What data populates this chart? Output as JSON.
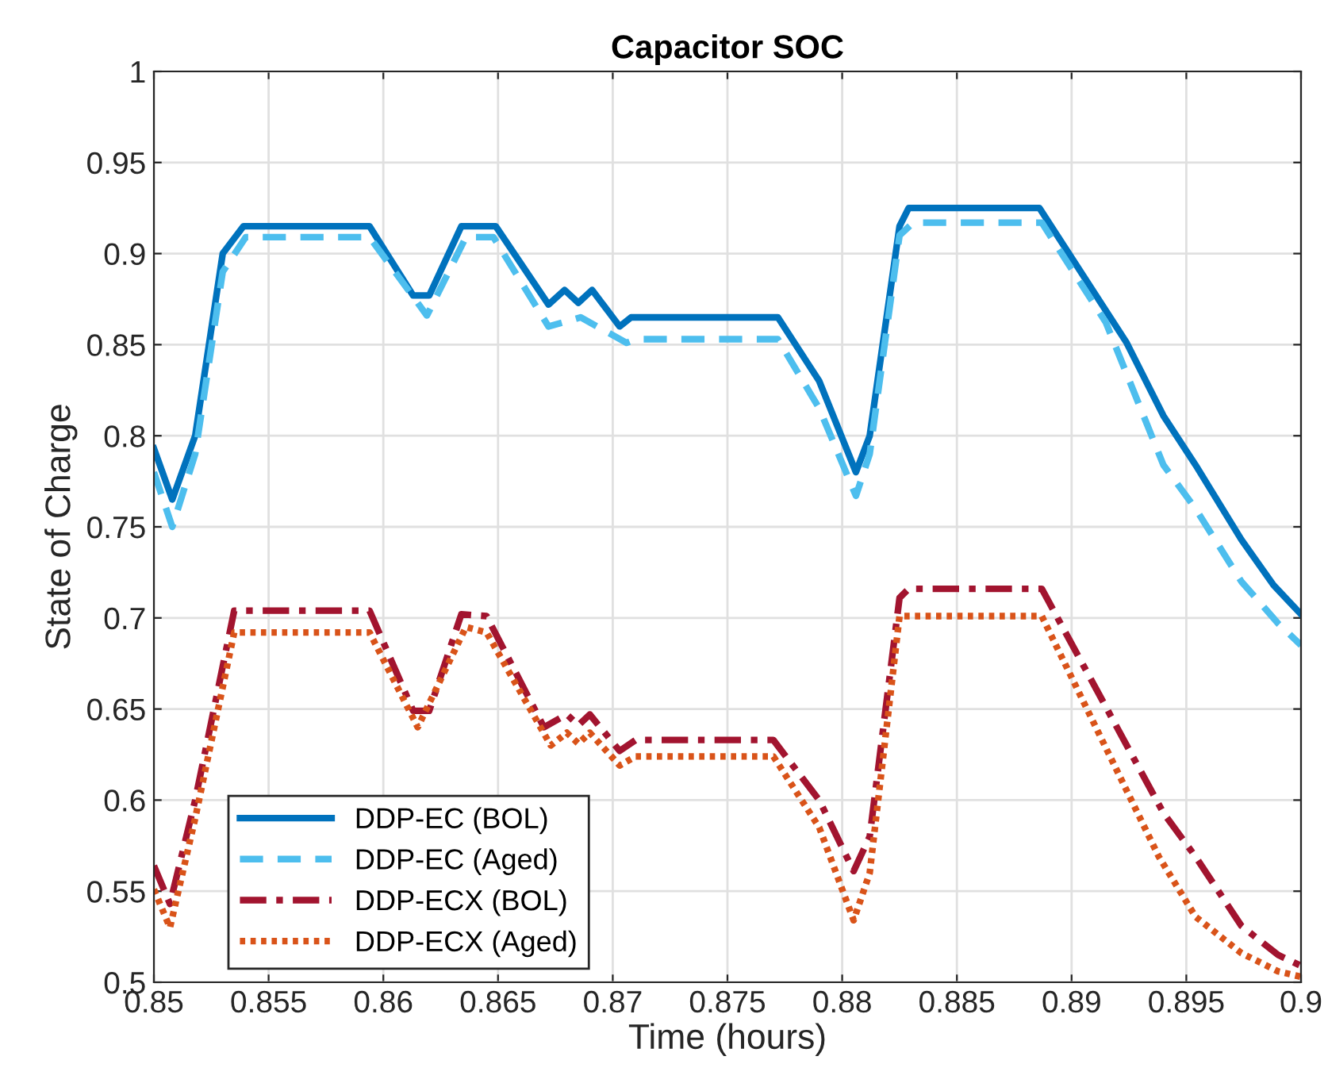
{
  "chart_data": {
    "type": "line",
    "title": "Capacitor SOC",
    "xlabel": "Time (hours)",
    "ylabel": "State of Charge",
    "xlim": [
      0.85,
      0.9
    ],
    "xticks": [
      0.85,
      0.855,
      0.86,
      0.865,
      0.87,
      0.875,
      0.88,
      0.885,
      0.89,
      0.895,
      0.9
    ],
    "ylim": [
      0.5,
      1
    ],
    "yticks": [
      0.5,
      0.55,
      0.6,
      0.65,
      0.7,
      0.75,
      0.8,
      0.85,
      0.9,
      0.95,
      1
    ],
    "grid": true,
    "legend": "bottom left",
    "marker": "none",
    "series": [
      {
        "name": "DDP-EC (BOL)",
        "color": "#0072bd",
        "line_style": "solid",
        "x": [
          0.85,
          0.8508,
          0.8518,
          0.853,
          0.8539,
          0.8594,
          0.8613,
          0.862,
          0.8634,
          0.8649,
          0.8672,
          0.8679,
          0.8685,
          0.8691,
          0.8703,
          0.8708,
          0.8772,
          0.879,
          0.8806,
          0.8812,
          0.8825,
          0.8829,
          0.8886,
          0.8924,
          0.894,
          0.8954,
          0.8974,
          0.8988,
          0.9
        ],
        "values": [
          0.793,
          0.765,
          0.8,
          0.9,
          0.915,
          0.915,
          0.877,
          0.877,
          0.915,
          0.915,
          0.872,
          0.88,
          0.873,
          0.88,
          0.86,
          0.865,
          0.865,
          0.83,
          0.78,
          0.8,
          0.915,
          0.925,
          0.925,
          0.851,
          0.811,
          0.784,
          0.743,
          0.718,
          0.702
        ]
      },
      {
        "name": "DDP-EC (Aged)",
        "color": "#4dbeee",
        "line_style": "dashed",
        "x": [
          0.85,
          0.8508,
          0.8518,
          0.853,
          0.854,
          0.8594,
          0.8619,
          0.8636,
          0.8648,
          0.8672,
          0.8686,
          0.8706,
          0.871,
          0.8772,
          0.879,
          0.8806,
          0.8812,
          0.8825,
          0.8831,
          0.8887,
          0.8915,
          0.894,
          0.8954,
          0.8974,
          0.899,
          0.9
        ],
        "values": [
          0.78,
          0.75,
          0.79,
          0.89,
          0.909,
          0.909,
          0.866,
          0.909,
          0.909,
          0.86,
          0.865,
          0.851,
          0.853,
          0.853,
          0.815,
          0.767,
          0.79,
          0.91,
          0.917,
          0.917,
          0.862,
          0.784,
          0.76,
          0.72,
          0.697,
          0.685
        ]
      },
      {
        "name": "DDP-ECX (BOL)",
        "color": "#a2142f",
        "line_style": "dashdot",
        "x": [
          0.85,
          0.8507,
          0.8518,
          0.8535,
          0.8594,
          0.8613,
          0.862,
          0.8634,
          0.8645,
          0.867,
          0.868,
          0.8685,
          0.869,
          0.8703,
          0.871,
          0.877,
          0.879,
          0.8805,
          0.8812,
          0.8825,
          0.8829,
          0.8887,
          0.894,
          0.8954,
          0.8974,
          0.899,
          0.9
        ],
        "values": [
          0.564,
          0.543,
          0.6,
          0.704,
          0.704,
          0.649,
          0.649,
          0.702,
          0.701,
          0.64,
          0.647,
          0.641,
          0.647,
          0.627,
          0.633,
          0.633,
          0.6,
          0.561,
          0.58,
          0.711,
          0.716,
          0.716,
          0.593,
          0.569,
          0.531,
          0.515,
          0.509
        ]
      },
      {
        "name": "DDP-ECX (Aged)",
        "color": "#d95319",
        "line_style": "dotted",
        "x": [
          0.85,
          0.8507,
          0.8518,
          0.8535,
          0.8594,
          0.8615,
          0.8636,
          0.8645,
          0.8673,
          0.868,
          0.8685,
          0.869,
          0.8703,
          0.871,
          0.877,
          0.879,
          0.8805,
          0.8812,
          0.8825,
          0.8887,
          0.8938,
          0.8954,
          0.8974,
          0.899,
          0.9
        ],
        "values": [
          0.551,
          0.53,
          0.59,
          0.692,
          0.692,
          0.64,
          0.695,
          0.692,
          0.63,
          0.637,
          0.631,
          0.637,
          0.619,
          0.624,
          0.624,
          0.585,
          0.534,
          0.56,
          0.701,
          0.701,
          0.569,
          0.536,
          0.516,
          0.506,
          0.503
        ]
      }
    ]
  }
}
